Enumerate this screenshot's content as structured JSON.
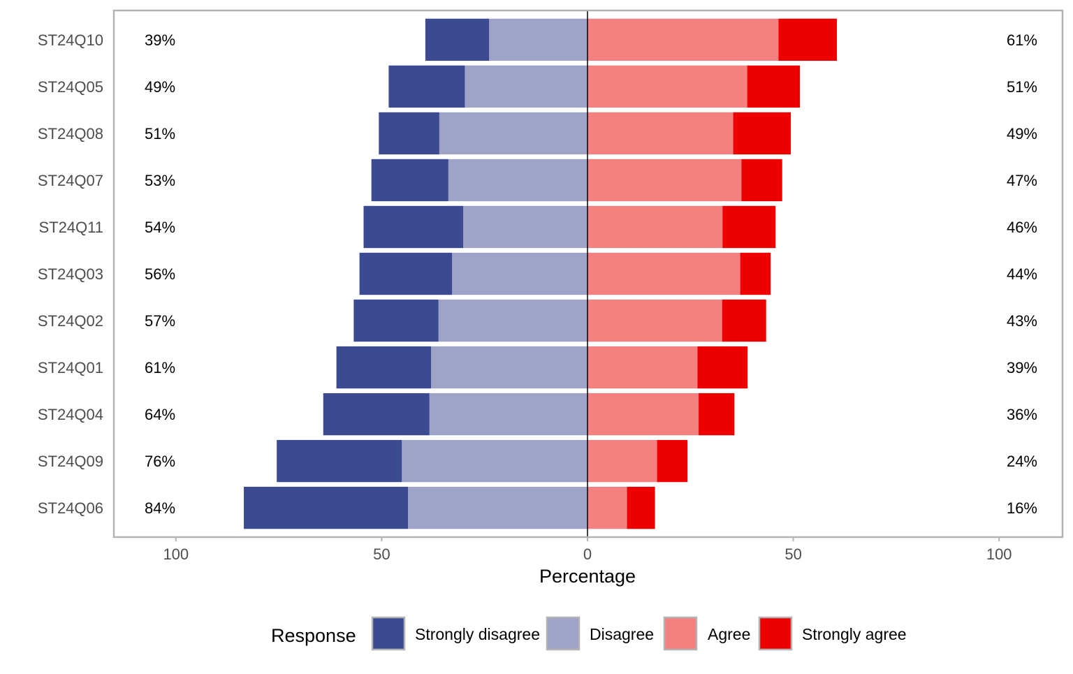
{
  "chart_data": {
    "type": "bar",
    "orientation": "horizontal-diverging",
    "xlabel": "Percentage",
    "xlim": [
      -115,
      115
    ],
    "xticks": [
      -100,
      -50,
      0,
      50,
      100
    ],
    "xtick_labels": [
      "100",
      "50",
      "0",
      "50",
      "100"
    ],
    "legend": {
      "title": "Response",
      "placement": "bottom",
      "entries": [
        {
          "label": "Strongly disagree",
          "color": "#3C4A91"
        },
        {
          "label": "Disagree",
          "color": "#9EA3C8"
        },
        {
          "label": "Agree",
          "color": "#F58080"
        },
        {
          "label": "Strongly agree",
          "color": "#EE0000"
        }
      ]
    },
    "categories": [
      "ST24Q10",
      "ST24Q05",
      "ST24Q08",
      "ST24Q07",
      "ST24Q11",
      "ST24Q03",
      "ST24Q02",
      "ST24Q01",
      "ST24Q04",
      "ST24Q09",
      "ST24Q06"
    ],
    "series": [
      {
        "name": "Strongly disagree",
        "color": "#3C4A91",
        "values": [
          15.5,
          18.5,
          14.7,
          18.7,
          24.2,
          22.5,
          20.6,
          23.0,
          25.8,
          30.4,
          39.9
        ]
      },
      {
        "name": "Disagree",
        "color": "#9EA3C8",
        "values": [
          23.9,
          29.8,
          36.0,
          33.8,
          30.2,
          32.9,
          36.2,
          38.0,
          38.4,
          45.1,
          43.6
        ]
      },
      {
        "name": "Agree",
        "color": "#F58080",
        "values": [
          46.4,
          38.8,
          35.4,
          37.4,
          32.8,
          37.1,
          32.7,
          26.7,
          27.0,
          16.9,
          9.6
        ]
      },
      {
        "name": "Strongly agree",
        "color": "#EE0000",
        "values": [
          14.2,
          12.8,
          14.0,
          9.9,
          12.9,
          7.4,
          10.7,
          12.2,
          8.7,
          7.4,
          6.8
        ]
      }
    ],
    "left_labels": [
      "39%",
      "49%",
      "51%",
      "53%",
      "54%",
      "56%",
      "57%",
      "61%",
      "64%",
      "76%",
      "84%"
    ],
    "right_labels": [
      "61%",
      "51%",
      "49%",
      "47%",
      "46%",
      "44%",
      "43%",
      "39%",
      "36%",
      "24%",
      "16%"
    ]
  }
}
